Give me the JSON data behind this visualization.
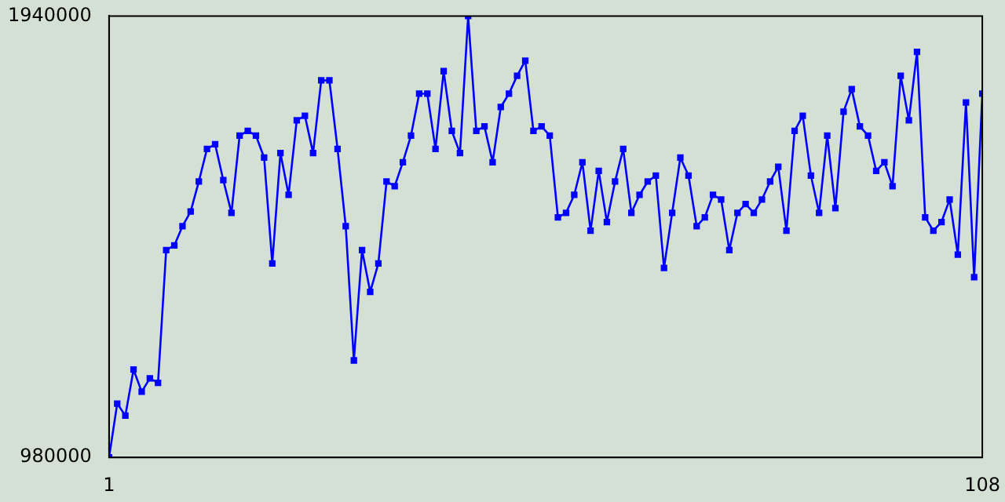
{
  "chart_data": {
    "type": "line",
    "color": "#0000ff",
    "marker": "square",
    "grid": false,
    "legend": false,
    "x": [
      1,
      2,
      3,
      4,
      5,
      6,
      7,
      8,
      9,
      10,
      11,
      12,
      13,
      14,
      15,
      16,
      17,
      18,
      19,
      20,
      21,
      22,
      23,
      24,
      25,
      26,
      27,
      28,
      29,
      30,
      31,
      32,
      33,
      34,
      35,
      36,
      37,
      38,
      39,
      40,
      41,
      42,
      43,
      44,
      45,
      46,
      47,
      48,
      49,
      50,
      51,
      52,
      53,
      54,
      55,
      56,
      57,
      58,
      59,
      60,
      61,
      62,
      63,
      64,
      65,
      66,
      67,
      68,
      69,
      70,
      71,
      72,
      73,
      74,
      75,
      76,
      77,
      78,
      79,
      80,
      81,
      82,
      83,
      84,
      85,
      86,
      87,
      88,
      89,
      90,
      91,
      92,
      93,
      94,
      95,
      96,
      97,
      98,
      99,
      100,
      101,
      102,
      103,
      104,
      105,
      106,
      107,
      108
    ],
    "values": [
      980000,
      1097000,
      1071000,
      1171000,
      1123000,
      1152000,
      1142000,
      1431000,
      1441000,
      1483000,
      1515000,
      1580000,
      1651000,
      1661000,
      1583000,
      1512000,
      1680000,
      1690000,
      1680000,
      1632000,
      1402000,
      1642000,
      1551000,
      1713000,
      1723000,
      1642000,
      1800000,
      1800000,
      1651000,
      1483000,
      1191000,
      1431000,
      1340000,
      1402000,
      1580000,
      1570000,
      1622000,
      1680000,
      1771000,
      1771000,
      1651000,
      1820000,
      1690000,
      1642000,
      1940000,
      1690000,
      1700000,
      1622000,
      1742000,
      1771000,
      1810000,
      1843000,
      1690000,
      1700000,
      1680000,
      1502000,
      1512000,
      1551000,
      1622000,
      1473000,
      1603000,
      1492000,
      1580000,
      1651000,
      1512000,
      1551000,
      1580000,
      1593000,
      1392000,
      1512000,
      1632000,
      1593000,
      1483000,
      1502000,
      1551000,
      1541000,
      1431000,
      1512000,
      1531000,
      1512000,
      1541000,
      1580000,
      1612000,
      1473000,
      1690000,
      1723000,
      1593000,
      1512000,
      1680000,
      1522000,
      1732000,
      1781000,
      1700000,
      1680000,
      1603000,
      1622000,
      1570000,
      1810000,
      1713000,
      1862000,
      1502000,
      1473000,
      1492000,
      1541000,
      1421000,
      1752000,
      1372000,
      1771000
    ],
    "xlim": [
      1,
      108
    ],
    "xticks": [
      1,
      108
    ],
    "ylim": [
      980000,
      1940000
    ],
    "yticks": [
      980000,
      1940000
    ]
  }
}
